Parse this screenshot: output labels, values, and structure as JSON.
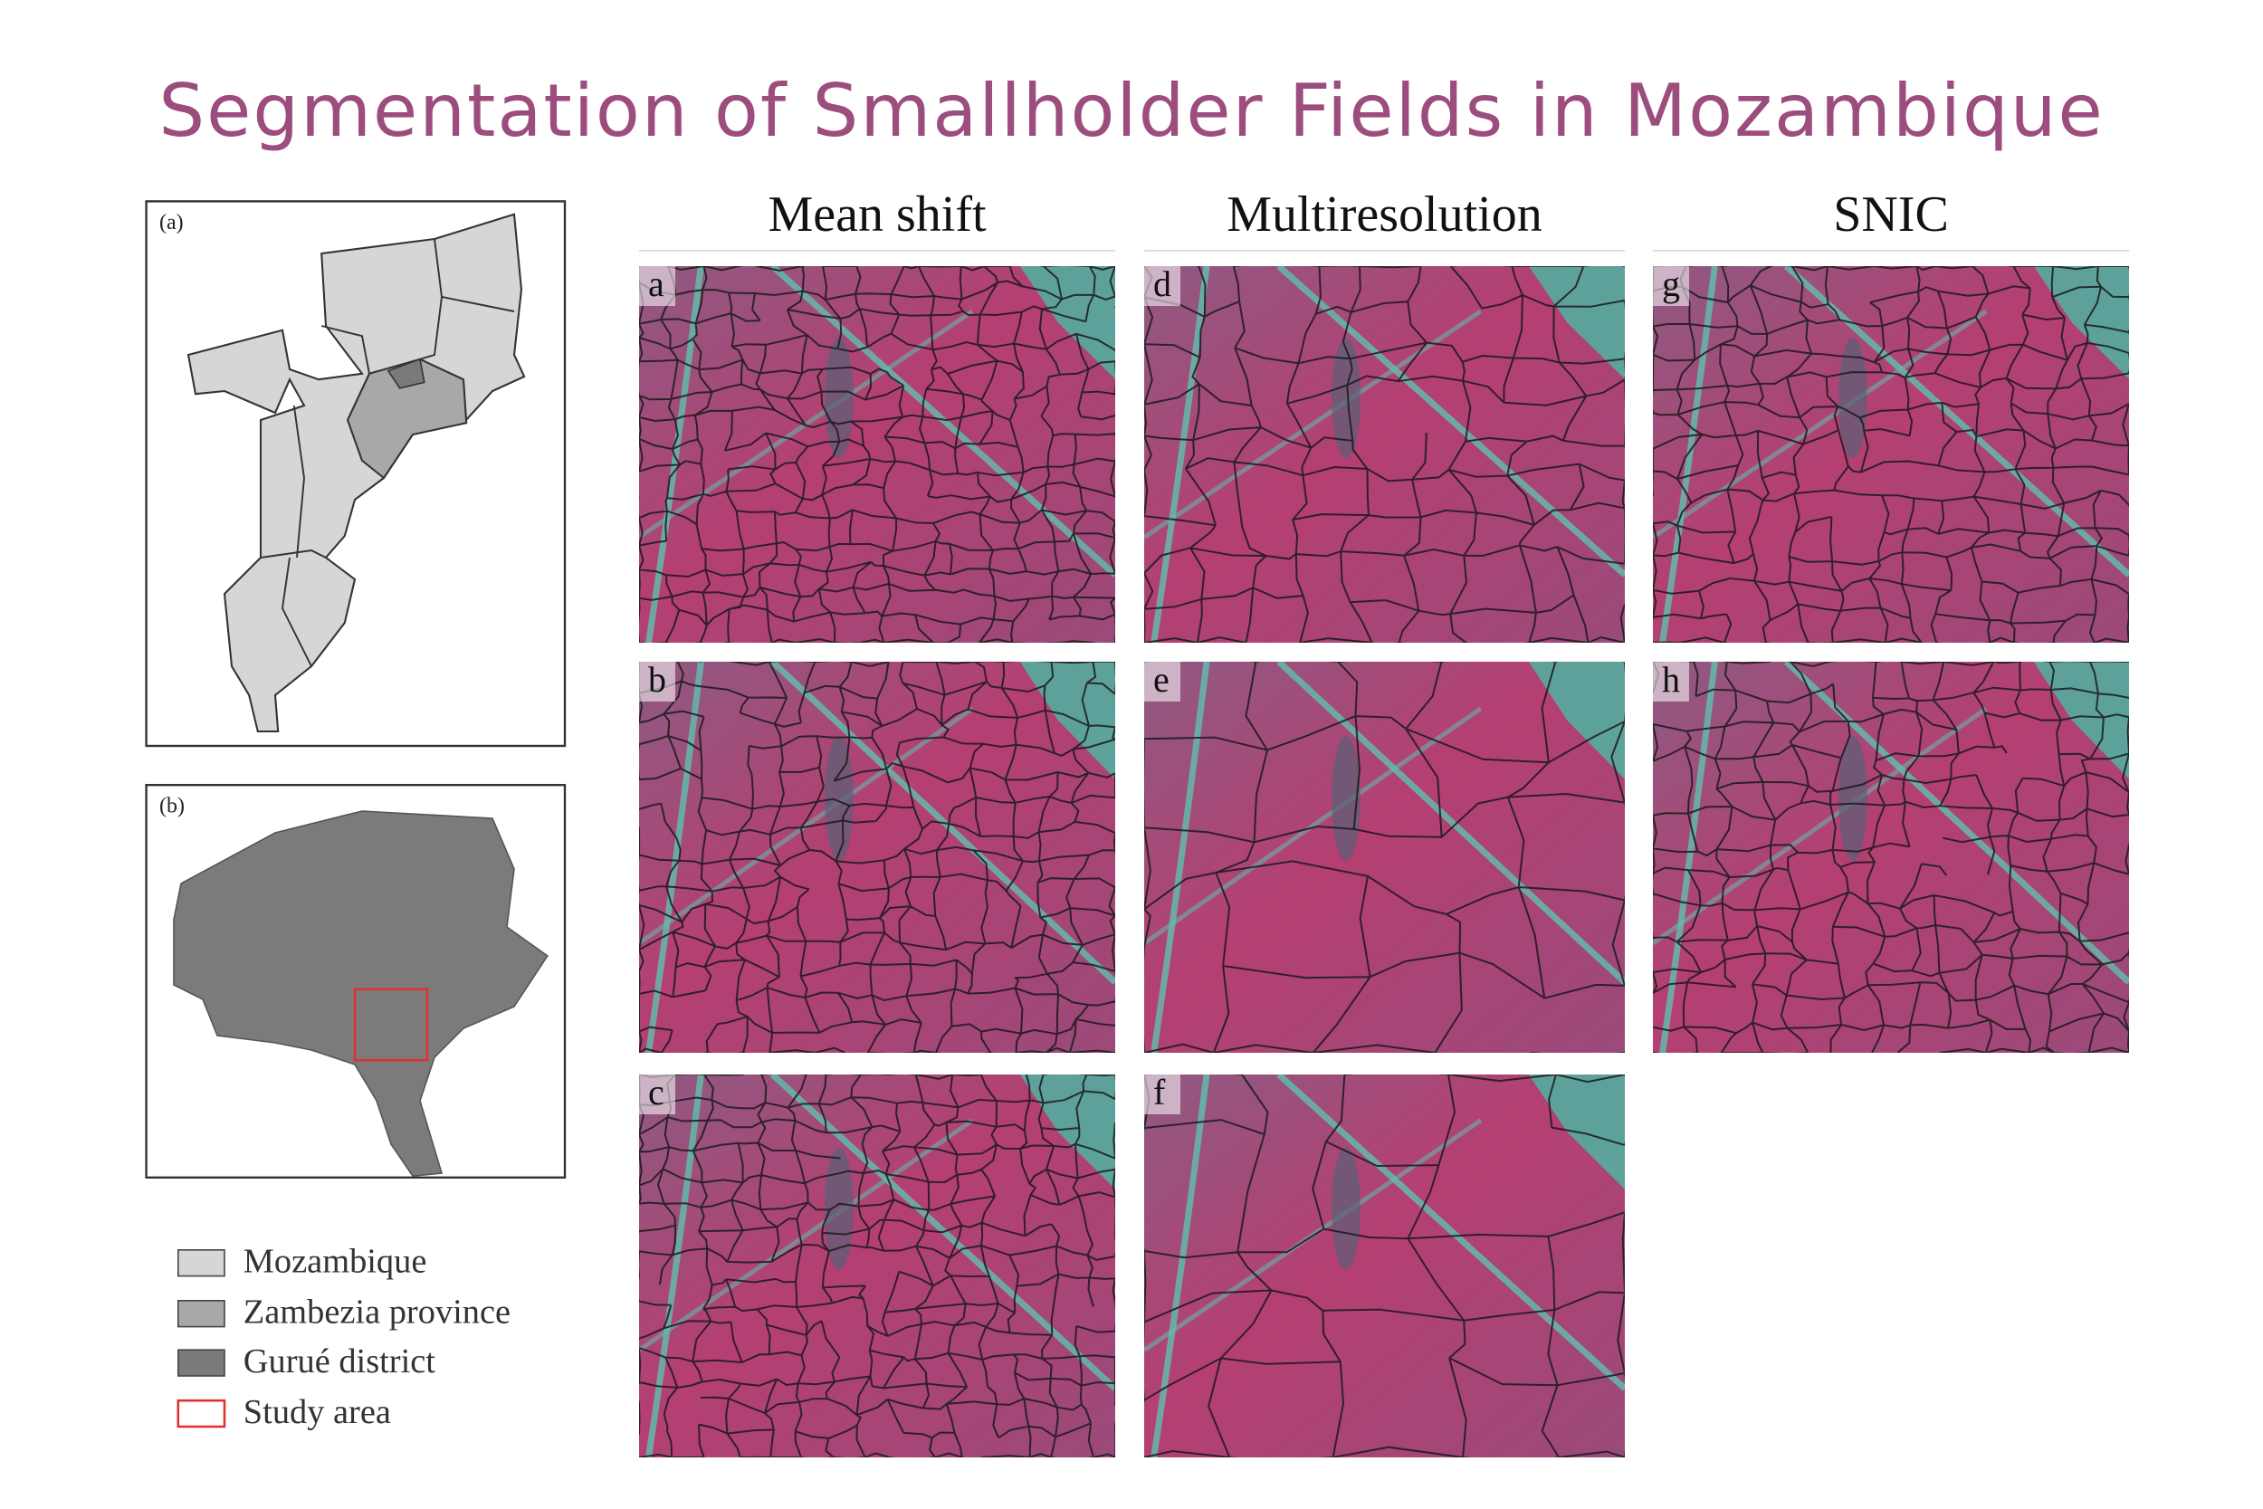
{
  "title": "Segmentation of Smallholder Fields in Mozambique",
  "columns": [
    "Mean shift",
    "Multiresolution",
    "SNIC"
  ],
  "panels": [
    [
      "a",
      "b",
      "c"
    ],
    [
      "d",
      "e",
      "f"
    ],
    [
      "g",
      "h"
    ]
  ],
  "map_a_label": "(a)",
  "map_b_label": "(b)",
  "legend": [
    "Mozambique",
    "Zambezia province",
    "Gurué district",
    "Study area"
  ]
}
